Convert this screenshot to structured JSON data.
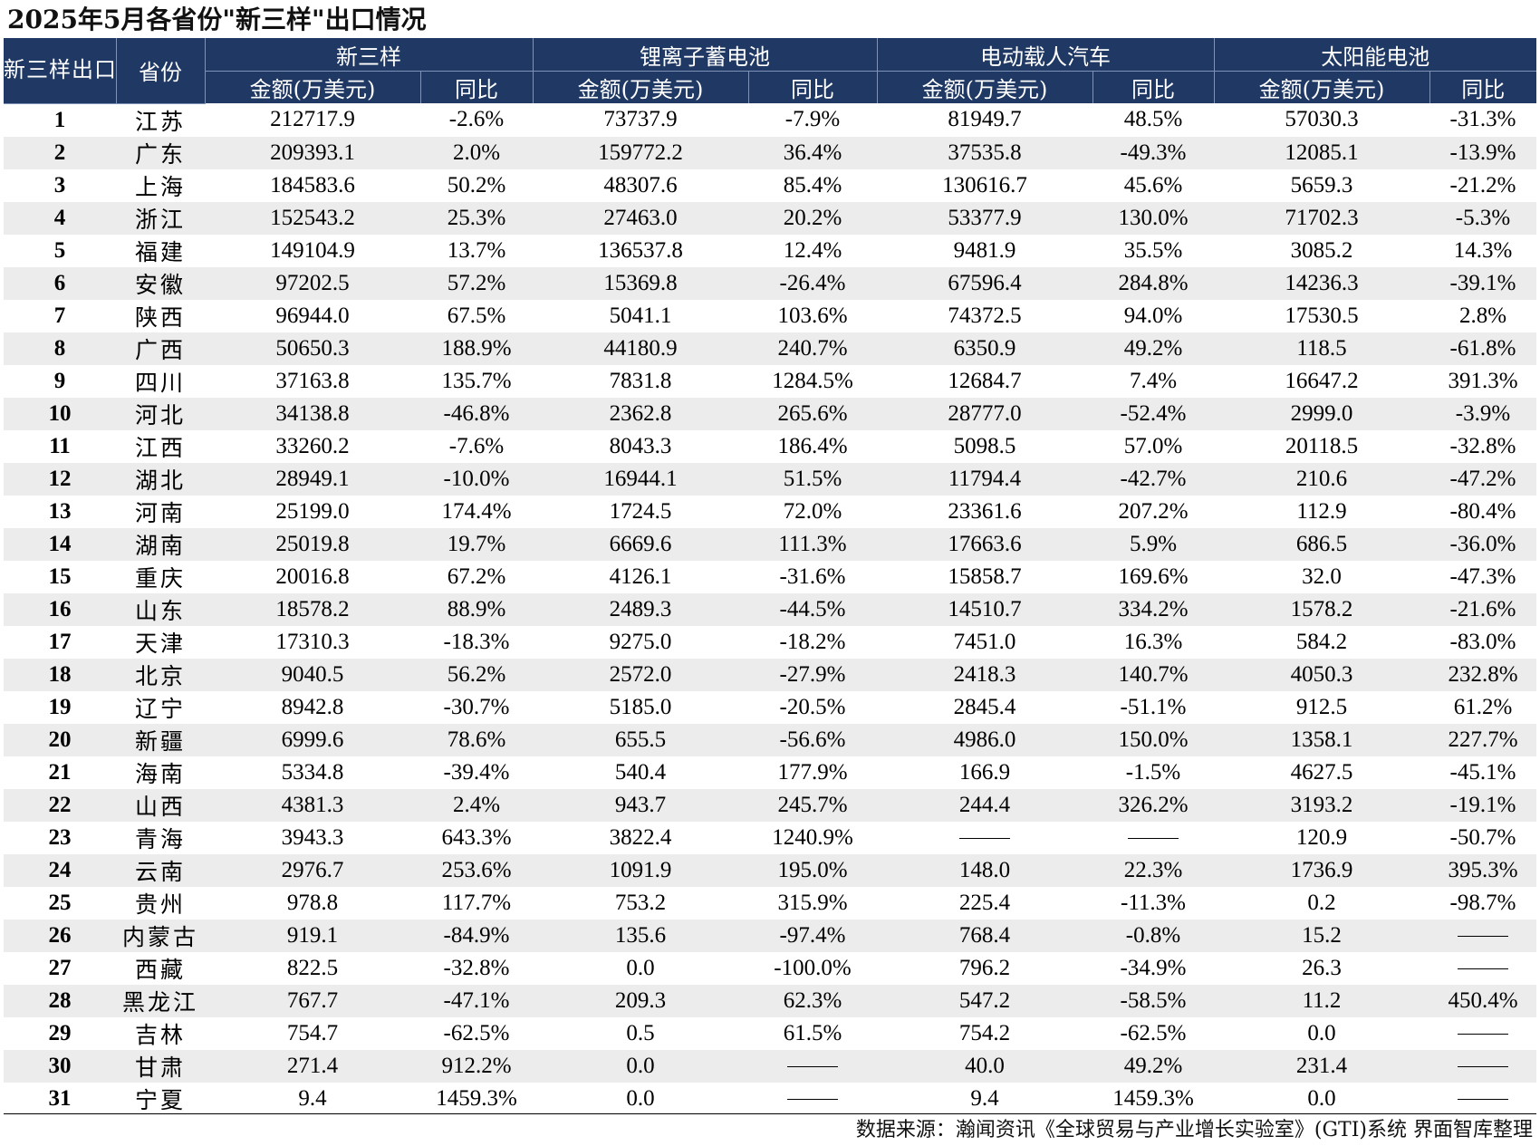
{
  "title": "2025年5月各省份\"新三样\"出口情况",
  "headers": {
    "rank": "新三样出口额排名",
    "province": "省份",
    "groups": [
      "新三样",
      "锂离子蓄电池",
      "电动载人汽车",
      "太阳能电池"
    ],
    "amount": "金额(万美元)",
    "yoy": "同比"
  },
  "rows": [
    {
      "rank": "1",
      "province": "江苏",
      "total": "212717.9",
      "total_yoy": "-2.6%",
      "battery": "73737.9",
      "battery_yoy": "-7.9%",
      "ev": "81949.7",
      "ev_yoy": "48.5%",
      "solar": "57030.3",
      "solar_yoy": "-31.3%"
    },
    {
      "rank": "2",
      "province": "广东",
      "total": "209393.1",
      "total_yoy": "2.0%",
      "battery": "159772.2",
      "battery_yoy": "36.4%",
      "ev": "37535.8",
      "ev_yoy": "-49.3%",
      "solar": "12085.1",
      "solar_yoy": "-13.9%"
    },
    {
      "rank": "3",
      "province": "上海",
      "total": "184583.6",
      "total_yoy": "50.2%",
      "battery": "48307.6",
      "battery_yoy": "85.4%",
      "ev": "130616.7",
      "ev_yoy": "45.6%",
      "solar": "5659.3",
      "solar_yoy": "-21.2%"
    },
    {
      "rank": "4",
      "province": "浙江",
      "total": "152543.2",
      "total_yoy": "25.3%",
      "battery": "27463.0",
      "battery_yoy": "20.2%",
      "ev": "53377.9",
      "ev_yoy": "130.0%",
      "solar": "71702.3",
      "solar_yoy": "-5.3%"
    },
    {
      "rank": "5",
      "province": "福建",
      "total": "149104.9",
      "total_yoy": "13.7%",
      "battery": "136537.8",
      "battery_yoy": "12.4%",
      "ev": "9481.9",
      "ev_yoy": "35.5%",
      "solar": "3085.2",
      "solar_yoy": "14.3%"
    },
    {
      "rank": "6",
      "province": "安徽",
      "total": "97202.5",
      "total_yoy": "57.2%",
      "battery": "15369.8",
      "battery_yoy": "-26.4%",
      "ev": "67596.4",
      "ev_yoy": "284.8%",
      "solar": "14236.3",
      "solar_yoy": "-39.1%"
    },
    {
      "rank": "7",
      "province": "陕西",
      "total": "96944.0",
      "total_yoy": "67.5%",
      "battery": "5041.1",
      "battery_yoy": "103.6%",
      "ev": "74372.5",
      "ev_yoy": "94.0%",
      "solar": "17530.5",
      "solar_yoy": "2.8%"
    },
    {
      "rank": "8",
      "province": "广西",
      "total": "50650.3",
      "total_yoy": "188.9%",
      "battery": "44180.9",
      "battery_yoy": "240.7%",
      "ev": "6350.9",
      "ev_yoy": "49.2%",
      "solar": "118.5",
      "solar_yoy": "-61.8%"
    },
    {
      "rank": "9",
      "province": "四川",
      "total": "37163.8",
      "total_yoy": "135.7%",
      "battery": "7831.8",
      "battery_yoy": "1284.5%",
      "ev": "12684.7",
      "ev_yoy": "7.4%",
      "solar": "16647.2",
      "solar_yoy": "391.3%"
    },
    {
      "rank": "10",
      "province": "河北",
      "total": "34138.8",
      "total_yoy": "-46.8%",
      "battery": "2362.8",
      "battery_yoy": "265.6%",
      "ev": "28777.0",
      "ev_yoy": "-52.4%",
      "solar": "2999.0",
      "solar_yoy": "-3.9%"
    },
    {
      "rank": "11",
      "province": "江西",
      "total": "33260.2",
      "total_yoy": "-7.6%",
      "battery": "8043.3",
      "battery_yoy": "186.4%",
      "ev": "5098.5",
      "ev_yoy": "57.0%",
      "solar": "20118.5",
      "solar_yoy": "-32.8%"
    },
    {
      "rank": "12",
      "province": "湖北",
      "total": "28949.1",
      "total_yoy": "-10.0%",
      "battery": "16944.1",
      "battery_yoy": "51.5%",
      "ev": "11794.4",
      "ev_yoy": "-42.7%",
      "solar": "210.6",
      "solar_yoy": "-47.2%"
    },
    {
      "rank": "13",
      "province": "河南",
      "total": "25199.0",
      "total_yoy": "174.4%",
      "battery": "1724.5",
      "battery_yoy": "72.0%",
      "ev": "23361.6",
      "ev_yoy": "207.2%",
      "solar": "112.9",
      "solar_yoy": "-80.4%"
    },
    {
      "rank": "14",
      "province": "湖南",
      "total": "25019.8",
      "total_yoy": "19.7%",
      "battery": "6669.6",
      "battery_yoy": "111.3%",
      "ev": "17663.6",
      "ev_yoy": "5.9%",
      "solar": "686.5",
      "solar_yoy": "-36.0%"
    },
    {
      "rank": "15",
      "province": "重庆",
      "total": "20016.8",
      "total_yoy": "67.2%",
      "battery": "4126.1",
      "battery_yoy": "-31.6%",
      "ev": "15858.7",
      "ev_yoy": "169.6%",
      "solar": "32.0",
      "solar_yoy": "-47.3%"
    },
    {
      "rank": "16",
      "province": "山东",
      "total": "18578.2",
      "total_yoy": "88.9%",
      "battery": "2489.3",
      "battery_yoy": "-44.5%",
      "ev": "14510.7",
      "ev_yoy": "334.2%",
      "solar": "1578.2",
      "solar_yoy": "-21.6%"
    },
    {
      "rank": "17",
      "province": "天津",
      "total": "17310.3",
      "total_yoy": "-18.3%",
      "battery": "9275.0",
      "battery_yoy": "-18.2%",
      "ev": "7451.0",
      "ev_yoy": "16.3%",
      "solar": "584.2",
      "solar_yoy": "-83.0%"
    },
    {
      "rank": "18",
      "province": "北京",
      "total": "9040.5",
      "total_yoy": "56.2%",
      "battery": "2572.0",
      "battery_yoy": "-27.9%",
      "ev": "2418.3",
      "ev_yoy": "140.7%",
      "solar": "4050.3",
      "solar_yoy": "232.8%"
    },
    {
      "rank": "19",
      "province": "辽宁",
      "total": "8942.8",
      "total_yoy": "-30.7%",
      "battery": "5185.0",
      "battery_yoy": "-20.5%",
      "ev": "2845.4",
      "ev_yoy": "-51.1%",
      "solar": "912.5",
      "solar_yoy": "61.2%"
    },
    {
      "rank": "20",
      "province": "新疆",
      "total": "6999.6",
      "total_yoy": "78.6%",
      "battery": "655.5",
      "battery_yoy": "-56.6%",
      "ev": "4986.0",
      "ev_yoy": "150.0%",
      "solar": "1358.1",
      "solar_yoy": "227.7%"
    },
    {
      "rank": "21",
      "province": "海南",
      "total": "5334.8",
      "total_yoy": "-39.4%",
      "battery": "540.4",
      "battery_yoy": "177.9%",
      "ev": "166.9",
      "ev_yoy": "-1.5%",
      "solar": "4627.5",
      "solar_yoy": "-45.1%"
    },
    {
      "rank": "22",
      "province": "山西",
      "total": "4381.3",
      "total_yoy": "2.4%",
      "battery": "943.7",
      "battery_yoy": "245.7%",
      "ev": "244.4",
      "ev_yoy": "326.2%",
      "solar": "3193.2",
      "solar_yoy": "-19.1%"
    },
    {
      "rank": "23",
      "province": "青海",
      "total": "3943.3",
      "total_yoy": "643.3%",
      "battery": "3822.4",
      "battery_yoy": "1240.9%",
      "ev": "—",
      "ev_yoy": "—",
      "solar": "120.9",
      "solar_yoy": "-50.7%"
    },
    {
      "rank": "24",
      "province": "云南",
      "total": "2976.7",
      "total_yoy": "253.6%",
      "battery": "1091.9",
      "battery_yoy": "195.0%",
      "ev": "148.0",
      "ev_yoy": "22.3%",
      "solar": "1736.9",
      "solar_yoy": "395.3%"
    },
    {
      "rank": "25",
      "province": "贵州",
      "total": "978.8",
      "total_yoy": "117.7%",
      "battery": "753.2",
      "battery_yoy": "315.9%",
      "ev": "225.4",
      "ev_yoy": "-11.3%",
      "solar": "0.2",
      "solar_yoy": "-98.7%"
    },
    {
      "rank": "26",
      "province": "内蒙古",
      "total": "919.1",
      "total_yoy": "-84.9%",
      "battery": "135.6",
      "battery_yoy": "-97.4%",
      "ev": "768.4",
      "ev_yoy": "-0.8%",
      "solar": "15.2",
      "solar_yoy": "—"
    },
    {
      "rank": "27",
      "province": "西藏",
      "total": "822.5",
      "total_yoy": "-32.8%",
      "battery": "0.0",
      "battery_yoy": "-100.0%",
      "ev": "796.2",
      "ev_yoy": "-34.9%",
      "solar": "26.3",
      "solar_yoy": "—"
    },
    {
      "rank": "28",
      "province": "黑龙江",
      "total": "767.7",
      "total_yoy": "-47.1%",
      "battery": "209.3",
      "battery_yoy": "62.3%",
      "ev": "547.2",
      "ev_yoy": "-58.5%",
      "solar": "11.2",
      "solar_yoy": "450.4%"
    },
    {
      "rank": "29",
      "province": "吉林",
      "total": "754.7",
      "total_yoy": "-62.5%",
      "battery": "0.5",
      "battery_yoy": "61.5%",
      "ev": "754.2",
      "ev_yoy": "-62.5%",
      "solar": "0.0",
      "solar_yoy": "—"
    },
    {
      "rank": "30",
      "province": "甘肃",
      "total": "271.4",
      "total_yoy": "912.2%",
      "battery": "0.0",
      "battery_yoy": "—",
      "ev": "40.0",
      "ev_yoy": "49.2%",
      "solar": "231.4",
      "solar_yoy": "—"
    },
    {
      "rank": "31",
      "province": "宁夏",
      "total": "9.4",
      "total_yoy": "1459.3%",
      "battery": "0.0",
      "battery_yoy": "—",
      "ev": "9.4",
      "ev_yoy": "1459.3%",
      "solar": "0.0",
      "solar_yoy": "—"
    }
  ],
  "source": "数据来源：瀚闻资讯《全球贸易与产业增长实验室》(GTI)系统   界面智库整理"
}
